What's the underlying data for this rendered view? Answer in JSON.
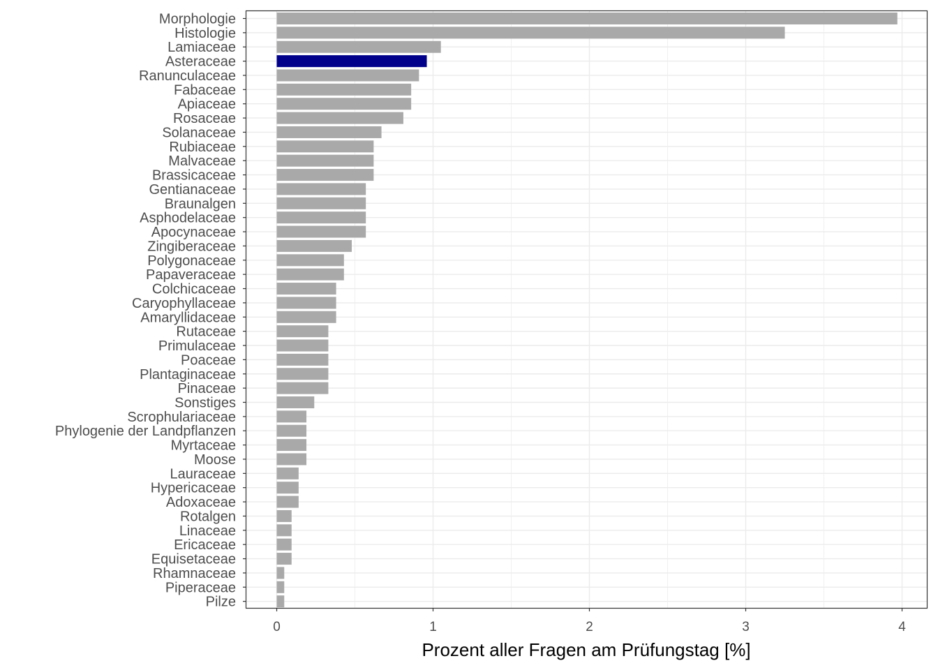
{
  "chart_data": {
    "type": "bar",
    "orientation": "horizontal",
    "xlabel": "Prozent aller Fragen am Prüfungstag [%]",
    "ylabel": "",
    "xlim": [
      -0.2,
      4.17
    ],
    "x_ticks": [
      0,
      1,
      2,
      3,
      4
    ],
    "x_tick_labels": [
      "0",
      "1",
      "2",
      "3",
      "4"
    ],
    "grid": true,
    "legend": "none",
    "colors": {
      "default": "#a9a9a9",
      "highlight": "#00008b",
      "grid": "#ebebeb",
      "border": "#333333"
    },
    "highlighted": "Asteraceae",
    "categories": [
      "Morphologie",
      "Histologie",
      "Lamiaceae",
      "Asteraceae",
      "Ranunculaceae",
      "Fabaceae",
      "Apiaceae",
      "Rosaceae",
      "Solanaceae",
      "Rubiaceae",
      "Malvaceae",
      "Brassicaceae",
      "Gentianaceae",
      "Braunalgen",
      "Asphodelaceae",
      "Apocynaceae",
      "Zingiberaceae",
      "Polygonaceae",
      "Papaveraceae",
      "Colchicaceae",
      "Caryophyllaceae",
      "Amaryllidaceae",
      "Rutaceae",
      "Primulaceae",
      "Poaceae",
      "Plantaginaceae",
      "Pinaceae",
      "Sonstiges",
      "Scrophulariaceae",
      "Phylogenie der Landpflanzen",
      "Myrtaceae",
      "Moose",
      "Lauraceae",
      "Hypericaceae",
      "Adoxaceae",
      "Rotalgen",
      "Linaceae",
      "Ericaceae",
      "Equisetaceae",
      "Rhamnaceae",
      "Piperaceae",
      "Pilze"
    ],
    "values": [
      3.97,
      3.25,
      1.05,
      0.96,
      0.91,
      0.86,
      0.86,
      0.81,
      0.67,
      0.62,
      0.62,
      0.62,
      0.57,
      0.57,
      0.57,
      0.57,
      0.48,
      0.43,
      0.43,
      0.38,
      0.38,
      0.38,
      0.33,
      0.33,
      0.33,
      0.33,
      0.33,
      0.24,
      0.19,
      0.19,
      0.19,
      0.19,
      0.14,
      0.14,
      0.14,
      0.095,
      0.095,
      0.095,
      0.095,
      0.048,
      0.048,
      0.048
    ]
  }
}
